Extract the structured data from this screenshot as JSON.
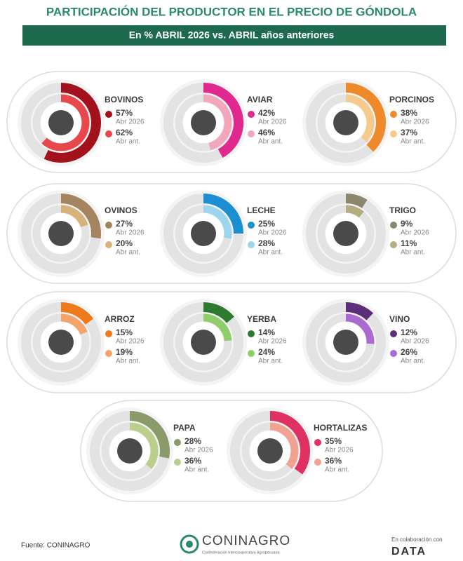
{
  "header": {
    "title": "PARTICIPACIÓN DEL PRODUCTOR EN EL PRECIO DE GÓNDOLA",
    "subtitle": "En % ABRIL 2026 vs. ABRIL años anteriores"
  },
  "chart_data": [
    {
      "type": "radial_bar",
      "title": "BOVINOS",
      "ylim": [
        0,
        100
      ],
      "series": [
        {
          "name": "Abr 2026",
          "color": "#a3111c",
          "values": [
            57
          ],
          "value_labels": [
            "57%"
          ]
        },
        {
          "name": "Abr ant.",
          "color": "#e8474b",
          "values": [
            62
          ],
          "value_labels": [
            "62%"
          ]
        }
      ]
    },
    {
      "type": "radial_bar",
      "title": "AVIAR",
      "ylim": [
        0,
        100
      ],
      "series": [
        {
          "name": "Abr 2026",
          "color": "#e0288f",
          "values": [
            42
          ],
          "value_labels": [
            "42%"
          ]
        },
        {
          "name": "Abr ant.",
          "color": "#f2a7bd",
          "values": [
            46
          ],
          "value_labels": [
            "46%"
          ]
        }
      ]
    },
    {
      "type": "radial_bar",
      "title": "PORCINOS",
      "ylim": [
        0,
        100
      ],
      "series": [
        {
          "name": "Abr 2026",
          "color": "#ef8a2a",
          "values": [
            38
          ],
          "value_labels": [
            "38%"
          ]
        },
        {
          "name": "Abr ant.",
          "color": "#f6c98c",
          "values": [
            37
          ],
          "value_labels": [
            "37%"
          ]
        }
      ]
    },
    {
      "type": "radial_bar",
      "title": "OVINOS",
      "ylim": [
        0,
        100
      ],
      "series": [
        {
          "name": "Abr 2026",
          "color": "#a5855f",
          "values": [
            27
          ],
          "value_labels": [
            "27%"
          ]
        },
        {
          "name": "Abr ant.",
          "color": "#d9b27b",
          "values": [
            20
          ],
          "value_labels": [
            "20%"
          ]
        }
      ]
    },
    {
      "type": "radial_bar",
      "title": "LECHE",
      "ylim": [
        0,
        100
      ],
      "series": [
        {
          "name": "Abr 2026",
          "color": "#1c8fd2",
          "values": [
            25
          ],
          "value_labels": [
            "25%"
          ]
        },
        {
          "name": "Abr ant.",
          "color": "#9dd5f1",
          "values": [
            28
          ],
          "value_labels": [
            "28%"
          ]
        }
      ]
    },
    {
      "type": "radial_bar",
      "title": "TRIGO",
      "ylim": [
        0,
        100
      ],
      "series": [
        {
          "name": "Abr 2026",
          "color": "#8a876d",
          "values": [
            9
          ],
          "value_labels": [
            "9%"
          ]
        },
        {
          "name": "Abr ant.",
          "color": "#b3ad80",
          "values": [
            11
          ],
          "value_labels": [
            "11%"
          ]
        }
      ]
    },
    {
      "type": "radial_bar",
      "title": "ARROZ",
      "ylim": [
        0,
        100
      ],
      "series": [
        {
          "name": "Abr 2026",
          "color": "#ef7a1b",
          "values": [
            15
          ],
          "value_labels": [
            "15%"
          ]
        },
        {
          "name": "Abr ant.",
          "color": "#f3a46b",
          "values": [
            19
          ],
          "value_labels": [
            "19%"
          ]
        }
      ]
    },
    {
      "type": "radial_bar",
      "title": "YERBA",
      "ylim": [
        0,
        100
      ],
      "series": [
        {
          "name": "Abr 2026",
          "color": "#2e7a2e",
          "values": [
            14
          ],
          "value_labels": [
            "14%"
          ]
        },
        {
          "name": "Abr ant.",
          "color": "#8fcf6b",
          "values": [
            24
          ],
          "value_labels": [
            "24%"
          ]
        }
      ]
    },
    {
      "type": "radial_bar",
      "title": "VINO",
      "ylim": [
        0,
        100
      ],
      "series": [
        {
          "name": "Abr 2026",
          "color": "#5b2d7a",
          "values": [
            12
          ],
          "value_labels": [
            "12%"
          ]
        },
        {
          "name": "Abr ant.",
          "color": "#a96ad1",
          "values": [
            26
          ],
          "value_labels": [
            "26%"
          ]
        }
      ]
    },
    {
      "type": "radial_bar",
      "title": "PAPA",
      "ylim": [
        0,
        100
      ],
      "series": [
        {
          "name": "Abr 2026",
          "color": "#8a9a6b",
          "values": [
            28
          ],
          "value_labels": [
            "28%"
          ]
        },
        {
          "name": "Abr ant.",
          "color": "#b9cf8b",
          "values": [
            36
          ],
          "value_labels": [
            "36%"
          ]
        }
      ]
    },
    {
      "type": "radial_bar",
      "title": "HORTALIZAS",
      "ylim": [
        0,
        100
      ],
      "series": [
        {
          "name": "Abr 2026",
          "color": "#e03262",
          "values": [
            35
          ],
          "value_labels": [
            "35%"
          ]
        },
        {
          "name": "Abr ant.",
          "color": "#f1a291",
          "values": [
            36
          ],
          "value_labels": [
            "36%"
          ]
        }
      ]
    }
  ],
  "footer": {
    "source": "Fuente: CONINAGRO",
    "logo": "CONINAGRO",
    "logo_subtitle": "Confederación Intercooperativa Agropecuaria",
    "collab": "En colaboración con",
    "partner": "DATA"
  }
}
